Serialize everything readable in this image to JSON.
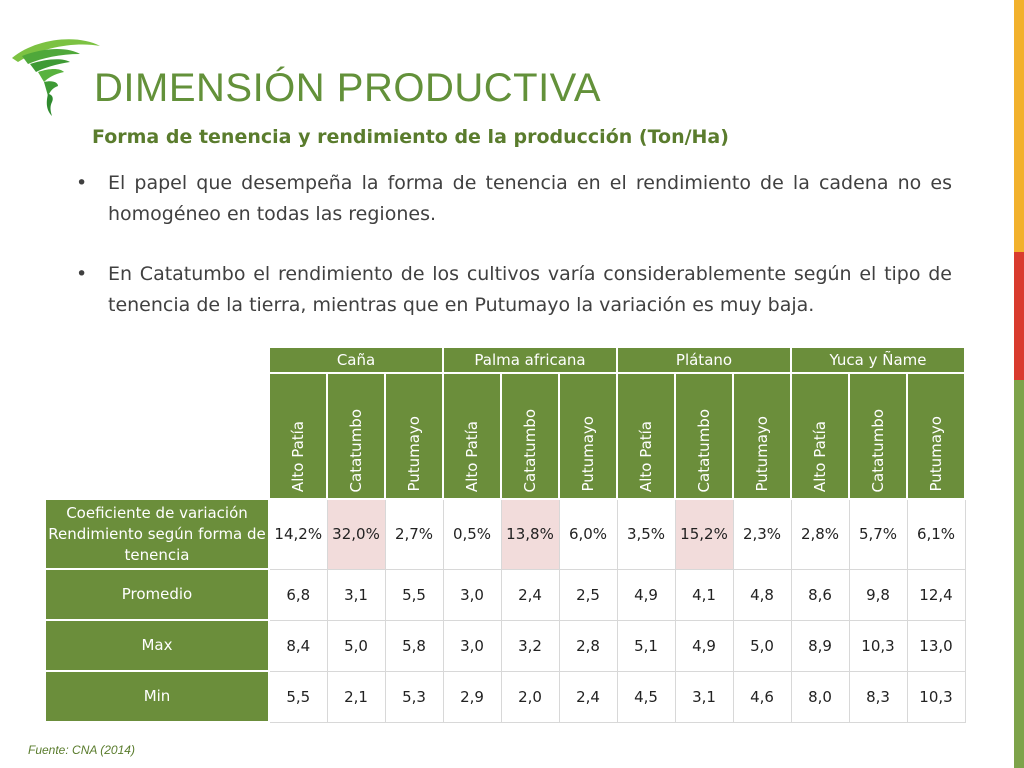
{
  "title": "DIMENSIÓN PRODUCTIVA",
  "subtitle": "Forma de tenencia y rendimiento de la producción (Ton/Ha)",
  "bullets": [
    "El papel que desempeña la forma de tenencia en el rendimiento de la cadena no es homogéneo en todas las regiones.",
    "En Catatumbo el rendimiento de los cultivos varía considerablemente según el tipo de tenencia de la tierra, mientras que en Putumayo la variación es muy baja."
  ],
  "table": {
    "crops": [
      "Caña",
      "Palma africana",
      "Plátano",
      "Yuca y Ñame"
    ],
    "regions": [
      "Alto Patía",
      "Catatumbo",
      "Putumayo"
    ],
    "rows": [
      {
        "label": "Coeficiente de variación Rendimiento según forma de tenencia",
        "values": [
          "14,2%",
          "32,0%",
          "2,7%",
          "0,5%",
          "13,8%",
          "6,0%",
          "3,5%",
          "15,2%",
          "2,3%",
          "2,8%",
          "5,7%",
          "6,1%"
        ]
      },
      {
        "label": "Promedio",
        "values": [
          "6,8",
          "3,1",
          "5,5",
          "3,0",
          "2,4",
          "2,5",
          "4,9",
          "4,1",
          "4,8",
          "8,6",
          "9,8",
          "12,4"
        ]
      },
      {
        "label": "Max",
        "values": [
          "8,4",
          "5,0",
          "5,8",
          "3,0",
          "3,2",
          "2,8",
          "5,1",
          "4,9",
          "5,0",
          "8,9",
          "10,3",
          "13,0"
        ]
      },
      {
        "label": "Min",
        "values": [
          "5,5",
          "2,1",
          "5,3",
          "2,9",
          "2,0",
          "2,4",
          "4,5",
          "3,1",
          "4,6",
          "8,0",
          "8,3",
          "10,3"
        ]
      }
    ]
  },
  "source": "Fuente: CNA (2014)",
  "colors": {
    "header_green": "#6b8e3b",
    "title_green": "#63913a",
    "highlight": "#f2dcdb",
    "bar_orange": "#f2b12c",
    "bar_red": "#d93b2e",
    "bar_green": "#7ea34a"
  },
  "logo_icon": "tornado-icon"
}
